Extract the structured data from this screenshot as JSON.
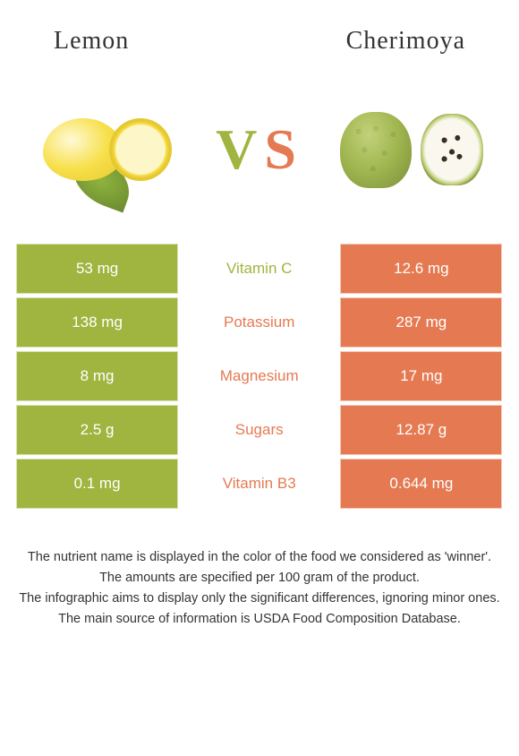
{
  "colors": {
    "left": "#9fb53f",
    "right": "#e57a52",
    "text_dark": "#333333",
    "white": "#ffffff"
  },
  "header": {
    "left_title": "Lemon",
    "right_title": "Cherimoya"
  },
  "vs": {
    "v": "V",
    "s": "S"
  },
  "table": {
    "rows": [
      {
        "left": "53 mg",
        "label": "Vitamin C",
        "right": "12.6 mg",
        "winner": "left"
      },
      {
        "left": "138 mg",
        "label": "Potassium",
        "right": "287 mg",
        "winner": "right"
      },
      {
        "left": "8 mg",
        "label": "Magnesium",
        "right": "17 mg",
        "winner": "right"
      },
      {
        "left": "2.5 g",
        "label": "Sugars",
        "right": "12.87 g",
        "winner": "right"
      },
      {
        "left": "0.1 mg",
        "label": "Vitamin B3",
        "right": "0.644 mg",
        "winner": "right"
      }
    ]
  },
  "footer": {
    "lines": [
      "The nutrient name is displayed in the color of the food we considered as 'winner'.",
      "The amounts are specified per 100 gram of the product.",
      "The infographic aims to display only the significant differences, ignoring minor ones.",
      "The main source of information is USDA Food Composition Database."
    ]
  }
}
